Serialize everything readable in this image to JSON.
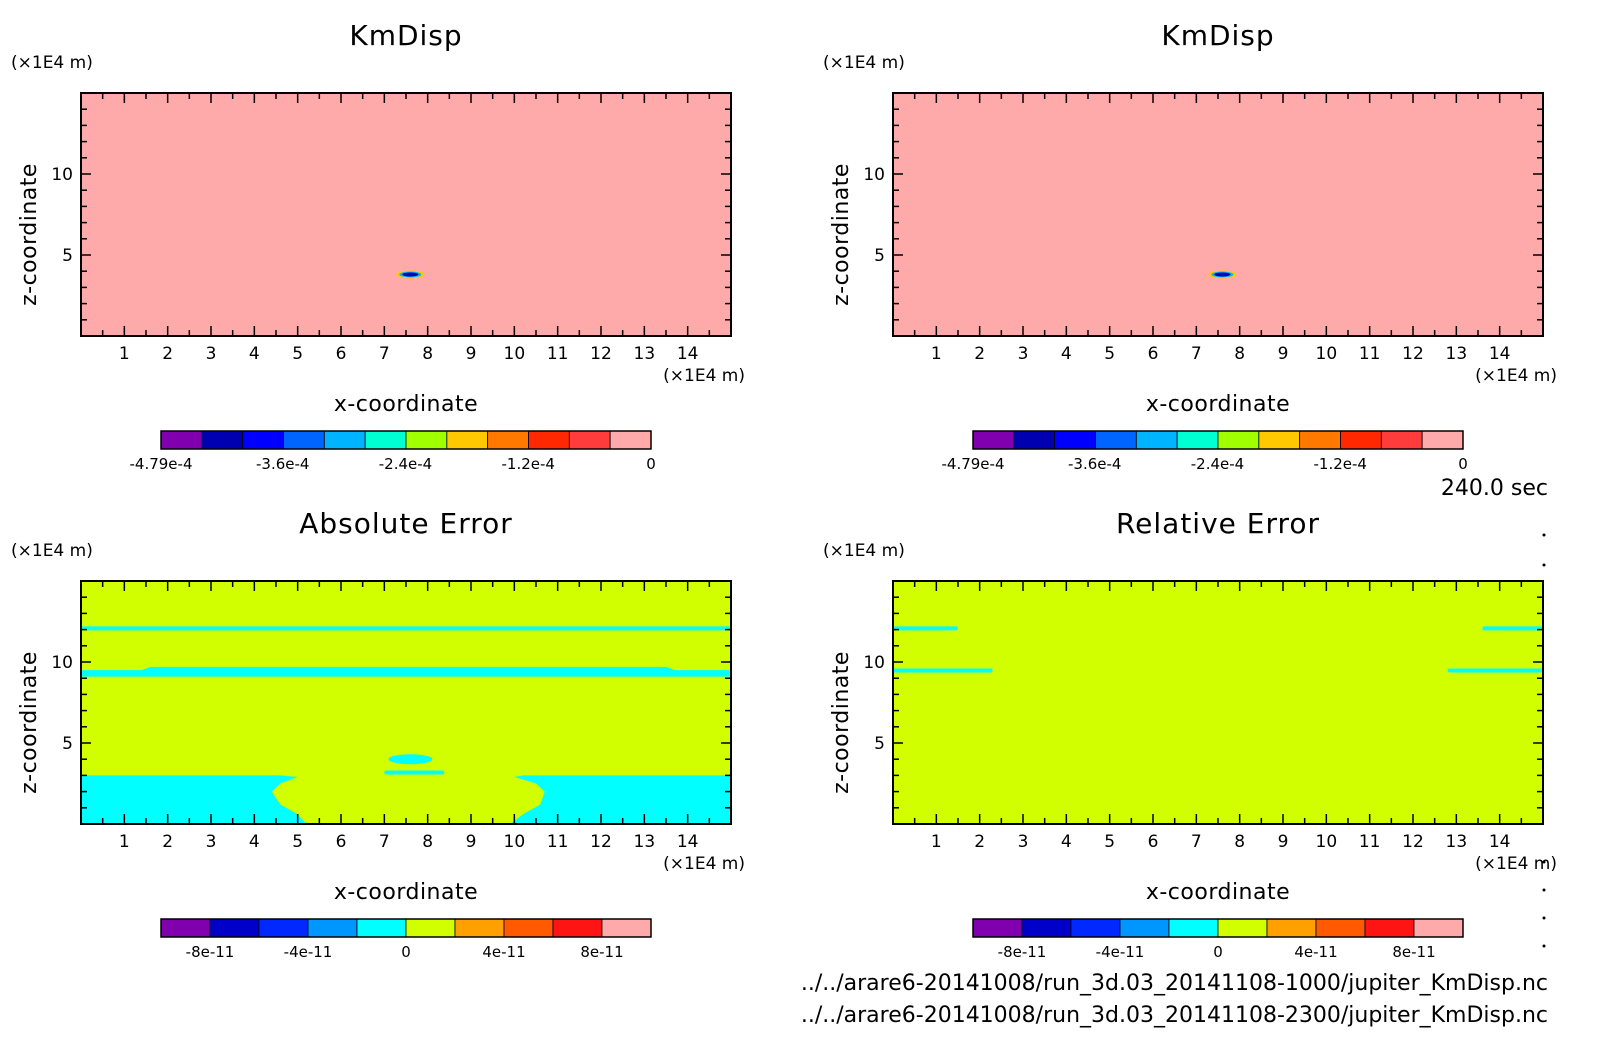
{
  "time_label": "240.0 sec",
  "file_lines": [
    "../../arare6-20141008/run_3d.03_20141108-1000/jupiter_KmDisp.nc",
    "../../arare6-20141008/run_3d.03_20141108-2300/jupiter_KmDisp.nc"
  ],
  "colors": {
    "scale_a": [
      "#8000b0",
      "#0000b0",
      "#0000ff",
      "#0064ff",
      "#00b4ff",
      "#00ffd2",
      "#a0ff00",
      "#ffc800",
      "#ff7800",
      "#ff2800",
      "#ff3c3c",
      "#ffaaaa"
    ],
    "scale_b": [
      "#8000b0",
      "#0000c8",
      "#0028ff",
      "#0096ff",
      "#00ffff",
      "#d2ff00",
      "#ffa000",
      "#ff5a00",
      "#ff1414",
      "#ffaaaa"
    ],
    "background_kmdisp": "#ffaaaa",
    "background_error": "#d2ff00",
    "feature": "#00ffff"
  },
  "chart_data": [
    {
      "type": "heatmap",
      "title": "KmDisp",
      "xlabel": "x-coordinate",
      "ylabel": "z-coordinate",
      "x_unit": "(×1E4 m)",
      "y_unit": "(×1E4 m)",
      "xlim": [
        0,
        15
      ],
      "ylim": [
        0,
        15
      ],
      "x_ticks": [
        "1",
        "2",
        "3",
        "4",
        "5",
        "6",
        "7",
        "8",
        "9",
        "10",
        "11",
        "12",
        "13",
        "14"
      ],
      "y_ticks": [
        "5",
        "10"
      ],
      "colorbar_labels": [
        "-4.79e-4",
        "-3.6e-4",
        "-2.4e-4",
        "-1.2e-4",
        "0"
      ],
      "colorbar_range": [
        -0.000479,
        0
      ],
      "field": "nearly uniform 0; small negative spot near x=7.6, z=3.8"
    },
    {
      "type": "heatmap",
      "title": "KmDisp",
      "xlabel": "x-coordinate",
      "ylabel": "z-coordinate",
      "x_unit": "(×1E4 m)",
      "y_unit": "(×1E4 m)",
      "xlim": [
        0,
        15
      ],
      "ylim": [
        0,
        15
      ],
      "x_ticks": [
        "1",
        "2",
        "3",
        "4",
        "5",
        "6",
        "7",
        "8",
        "9",
        "10",
        "11",
        "12",
        "13",
        "14"
      ],
      "y_ticks": [
        "5",
        "10"
      ],
      "colorbar_labels": [
        "-4.79e-4",
        "-3.6e-4",
        "-2.4e-4",
        "-1.2e-4",
        "0"
      ],
      "colorbar_range": [
        -0.000479,
        0
      ],
      "field": "nearly uniform 0; small negative spot near x=7.6, z=3.8"
    },
    {
      "type": "heatmap",
      "title": "Absolute Error",
      "xlabel": "x-coordinate",
      "ylabel": "z-coordinate",
      "x_unit": "(×1E4 m)",
      "y_unit": "(×1E4 m)",
      "xlim": [
        0,
        15
      ],
      "ylim": [
        0,
        15
      ],
      "x_ticks": [
        "1",
        "2",
        "3",
        "4",
        "5",
        "6",
        "7",
        "8",
        "9",
        "10",
        "11",
        "12",
        "13",
        "14"
      ],
      "y_ticks": [
        "5",
        "10"
      ],
      "colorbar_labels": [
        "-8e-11",
        "-4e-11",
        "0",
        "4e-11",
        "8e-11"
      ],
      "colorbar_range": [
        -1e-10,
        1e-10
      ]
    },
    {
      "type": "heatmap",
      "title": "Relative Error",
      "xlabel": "x-coordinate",
      "ylabel": "z-coordinate",
      "x_unit": "(×1E4 m)",
      "y_unit": "(×1E4 m)",
      "xlim": [
        0,
        15
      ],
      "ylim": [
        0,
        15
      ],
      "x_ticks": [
        "1",
        "2",
        "3",
        "4",
        "5",
        "6",
        "7",
        "8",
        "9",
        "10",
        "11",
        "12",
        "13",
        "14"
      ],
      "y_ticks": [
        "5",
        "10"
      ],
      "colorbar_labels": [
        "-8e-11",
        "-4e-11",
        "0",
        "4e-11",
        "8e-11"
      ],
      "colorbar_range": [
        -1e-10,
        1e-10
      ]
    }
  ]
}
